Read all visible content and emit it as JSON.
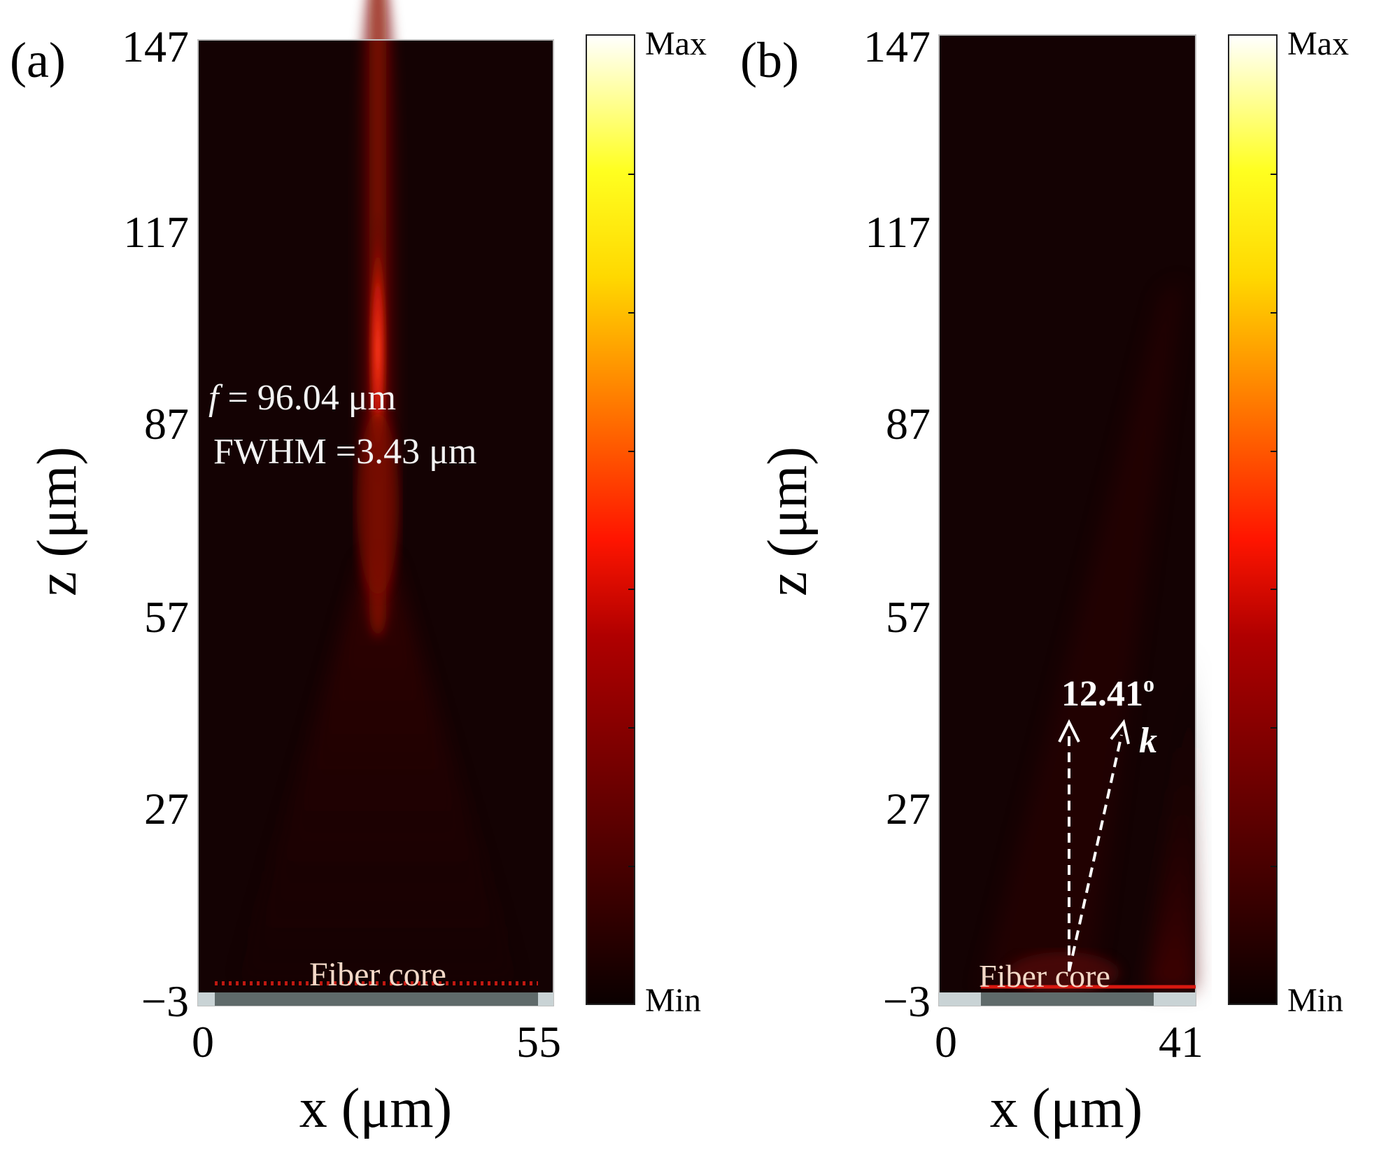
{
  "chart_data": [
    {
      "type": "heatmap",
      "panel_label": "(a)",
      "xlabel": "x (μm)",
      "ylabel": "z (μm)",
      "xlim": [
        0,
        55
      ],
      "ylim": [
        -3,
        147
      ],
      "x_ticks": [
        "0",
        "55"
      ],
      "y_ticks": [
        "147",
        "117",
        "87",
        "57",
        "27",
        "−3"
      ],
      "colorbar": {
        "max_label": "Max",
        "min_label": "Min",
        "colormap": "hot"
      },
      "annotations": {
        "focal_prefix": "f",
        "focal_rest": " = 96.04 μm",
        "fwhm": "FWHM =3.43 μm",
        "fiber_label": "Fiber core"
      },
      "focal_length_um": 96.04,
      "fwhm_um": 3.43,
      "beam_center_x_um": 27.5
    },
    {
      "type": "heatmap",
      "panel_label": "(b)",
      "xlabel": "x (μm)",
      "ylabel": "z (μm)",
      "xlim": [
        0,
        41
      ],
      "ylim": [
        -3,
        147
      ],
      "x_ticks": [
        "0",
        "41"
      ],
      "y_ticks": [
        "147",
        "117",
        "87",
        "57",
        "27",
        "−3"
      ],
      "colorbar": {
        "max_label": "Max",
        "min_label": "Min",
        "colormap": "hot"
      },
      "annotations": {
        "angle": "12.41",
        "angle_unit": "o",
        "wavevector": "k",
        "fiber_label": "Fiber core"
      },
      "deflection_angle_deg": 12.41,
      "beam_origin_x_um": 19.5
    }
  ],
  "colors": {
    "background": "#140203",
    "beam": "#ff2a10",
    "fiber_core": "#5f6a6a",
    "cladding": "#c9d3d5"
  }
}
